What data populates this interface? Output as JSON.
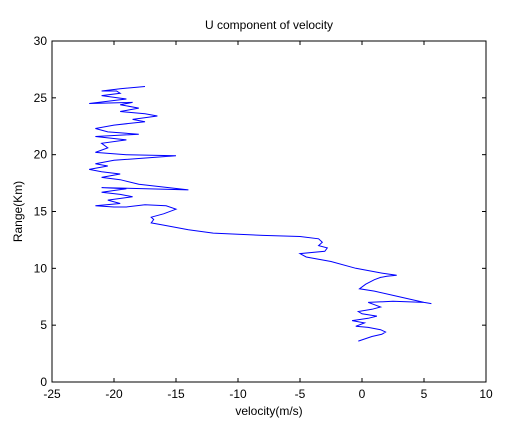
{
  "chart_data": {
    "type": "line",
    "title": "U component of velocity",
    "xlabel": "velocity(m/s)",
    "ylabel": "Range(Km)",
    "xlim": [
      -25,
      10
    ],
    "ylim": [
      0,
      30
    ],
    "xticks": [
      -25,
      -20,
      -15,
      -10,
      -5,
      0,
      5,
      10
    ],
    "yticks": [
      0,
      5,
      10,
      15,
      20,
      25,
      30
    ],
    "grid": false,
    "line_color": "#0000ff",
    "series": [
      {
        "x": [
          -0.3,
          0.8,
          1.6,
          1.9,
          1.5,
          0.5,
          -0.5,
          0.2,
          -0.8,
          0.5,
          1.2,
          0.0,
          -0.3,
          0.8,
          1.5,
          1.0,
          0.5,
          2.5,
          5.0,
          5.6,
          5.0,
          3.0,
          1.0,
          -0.2,
          0.3,
          1.0,
          1.5,
          2.0,
          2.8,
          1.5,
          -0.5,
          -2.5,
          -4.5,
          -5.0,
          -3.0,
          -2.8,
          -3.5,
          -3.2,
          -3.5,
          -5.0,
          -8.0,
          -10.0,
          -12.0,
          -14.0,
          -16.0,
          -17.0,
          -16.8,
          -17.0,
          -16.0,
          -15.0,
          -15.8,
          -17.5,
          -19.0,
          -20.0,
          -21.5,
          -19.5,
          -20.5,
          -18.5,
          -19.5,
          -21.0,
          -19.0,
          -21.0,
          -14.0,
          -18.0,
          -19.5,
          -21.0,
          -19.5,
          -21.0,
          -22.0,
          -20.5,
          -21.5,
          -20.0,
          -15.0,
          -19.0,
          -21.5,
          -20.5,
          -21.0,
          -19.0,
          -21.5,
          -18.0,
          -20.5,
          -21.5,
          -20.0,
          -17.5,
          -18.5,
          -16.5,
          -17.5,
          -19.5,
          -18.0,
          -19.5,
          -18.5,
          -22.0,
          -19.0,
          -21.0,
          -19.5,
          -19.8,
          -21.0,
          -19.5,
          -17.5
        ],
        "y": [
          3.6,
          4.0,
          4.2,
          4.4,
          4.6,
          4.8,
          4.9,
          5.2,
          5.4,
          5.6,
          5.8,
          6.0,
          6.2,
          6.4,
          6.6,
          6.8,
          7.0,
          7.1,
          7.0,
          6.9,
          7.0,
          7.5,
          8.0,
          8.2,
          8.6,
          9.0,
          9.2,
          9.3,
          9.4,
          9.6,
          10.0,
          10.6,
          11.0,
          11.3,
          11.5,
          11.8,
          12.0,
          12.3,
          12.6,
          12.8,
          12.9,
          13.0,
          13.1,
          13.4,
          13.8,
          14.0,
          14.3,
          14.5,
          14.8,
          15.2,
          15.5,
          15.6,
          15.4,
          15.4,
          15.5,
          15.7,
          16.0,
          16.3,
          16.5,
          16.7,
          17.0,
          17.1,
          16.9,
          17.4,
          17.8,
          18.0,
          18.3,
          18.5,
          18.7,
          19.0,
          19.2,
          19.5,
          19.9,
          20.0,
          20.2,
          20.6,
          21.0,
          21.3,
          21.6,
          21.8,
          22.0,
          22.3,
          22.6,
          22.9,
          23.1,
          23.4,
          23.6,
          23.8,
          24.1,
          24.4,
          24.6,
          24.5,
          24.9,
          25.2,
          25.4,
          25.6,
          25.6,
          25.8,
          26.0
        ]
      }
    ]
  }
}
